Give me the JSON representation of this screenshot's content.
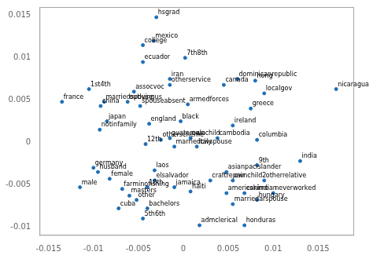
{
  "chart_data": {
    "type": "scatter",
    "x": [
      -0.003,
      -0.0033,
      -0.0045,
      0.0002,
      -0.0045,
      -0.0015,
      0.006,
      0.008,
      -0.0015,
      0.0045,
      0.017,
      -0.0105,
      -0.0055,
      0.009,
      -0.0135,
      -0.0088,
      -0.0062,
      -0.0048,
      0.0005,
      0.0075,
      -0.0092,
      -0.0085,
      -0.0038,
      -0.0003,
      0.0055,
      -0.0093,
      -0.0015,
      -0.0025,
      0.0038,
      0.0082,
      0.0008,
      -0.0042,
      -0.001,
      0.0015,
      -0.0032,
      -0.01,
      -0.0095,
      0.0082,
      0.0048,
      0.013,
      -0.0082,
      -0.0032,
      0.003,
      0.0055,
      0.009,
      -0.0115,
      -0.004,
      -0.001,
      0.0008,
      -0.0068,
      0.0048,
      0.0068,
      0.01,
      -0.006,
      -0.0052,
      0.0082,
      0.0055,
      -0.0072,
      -0.004,
      -0.0045,
      0.0018,
      0.0068
    ],
    "values": [
      0.0148,
      0.012,
      0.0115,
      0.01,
      0.0095,
      0.0075,
      0.0075,
      0.0073,
      0.0068,
      0.0068,
      0.0063,
      0.0063,
      0.006,
      0.0058,
      0.0048,
      0.0048,
      0.0048,
      0.0043,
      0.0045,
      0.004,
      0.0043,
      0.0025,
      0.0022,
      0.0025,
      0.002,
      0.0015,
      0.0005,
      0.0003,
      0.0005,
      0.0003,
      0.0005,
      -0.0002,
      -0.0005,
      -0.0005,
      -0.0033,
      -0.003,
      -0.0035,
      -0.0027,
      -0.0035,
      -0.0022,
      -0.0043,
      -0.0045,
      -0.0045,
      -0.0045,
      -0.0045,
      -0.0053,
      -0.0053,
      -0.0053,
      -0.0058,
      -0.0055,
      -0.006,
      -0.006,
      -0.006,
      -0.0063,
      -0.0068,
      -0.0068,
      -0.0073,
      -0.0078,
      -0.0078,
      -0.009,
      -0.0098,
      -0.0098
    ],
    "annotations": [
      "hsgrad",
      "mexico",
      "college",
      "7th8th",
      "ecuador",
      "iran",
      "dominicanrepublic",
      "hong",
      "otherservice",
      "canada",
      "nicaragua",
      "1st4th",
      "assocvoc",
      "localgov",
      "france",
      "marriedspouse",
      "outlvingus",
      "spouseabsent",
      "armedforces",
      "greece",
      "china",
      "japan",
      "england",
      "black",
      "ireland",
      "notinfamily",
      "guatemala",
      "otherscheme",
      "cambodia",
      "columbia",
      "ownchild",
      "12th",
      "marriedcivspouse",
      "italy",
      "laos",
      "germany",
      "husband",
      "9th",
      "asianpacislander",
      "india",
      "female",
      "elsalvador",
      "craftrepair",
      "ownchild2",
      "otherrelative",
      "male",
      "10th",
      "jamaica",
      "haiti",
      "farminofishing",
      "americanindian",
      "eskimo",
      "neverworked",
      "masters",
      "other",
      "hungary",
      "marriedarspouse",
      "cuba",
      "bachelors",
      "5th6th",
      "admclerical",
      "honduras"
    ],
    "color": "#1f6eb5",
    "xlim": [
      -0.016,
      0.019
    ],
    "ylim": [
      -0.011,
      0.016
    ],
    "xticks": [
      -0.015,
      -0.01,
      -0.005,
      0,
      0.005,
      0.01,
      0.015
    ],
    "yticks": [
      -0.01,
      -0.005,
      0,
      0.005,
      0.01,
      0.015
    ],
    "grid": false
  }
}
